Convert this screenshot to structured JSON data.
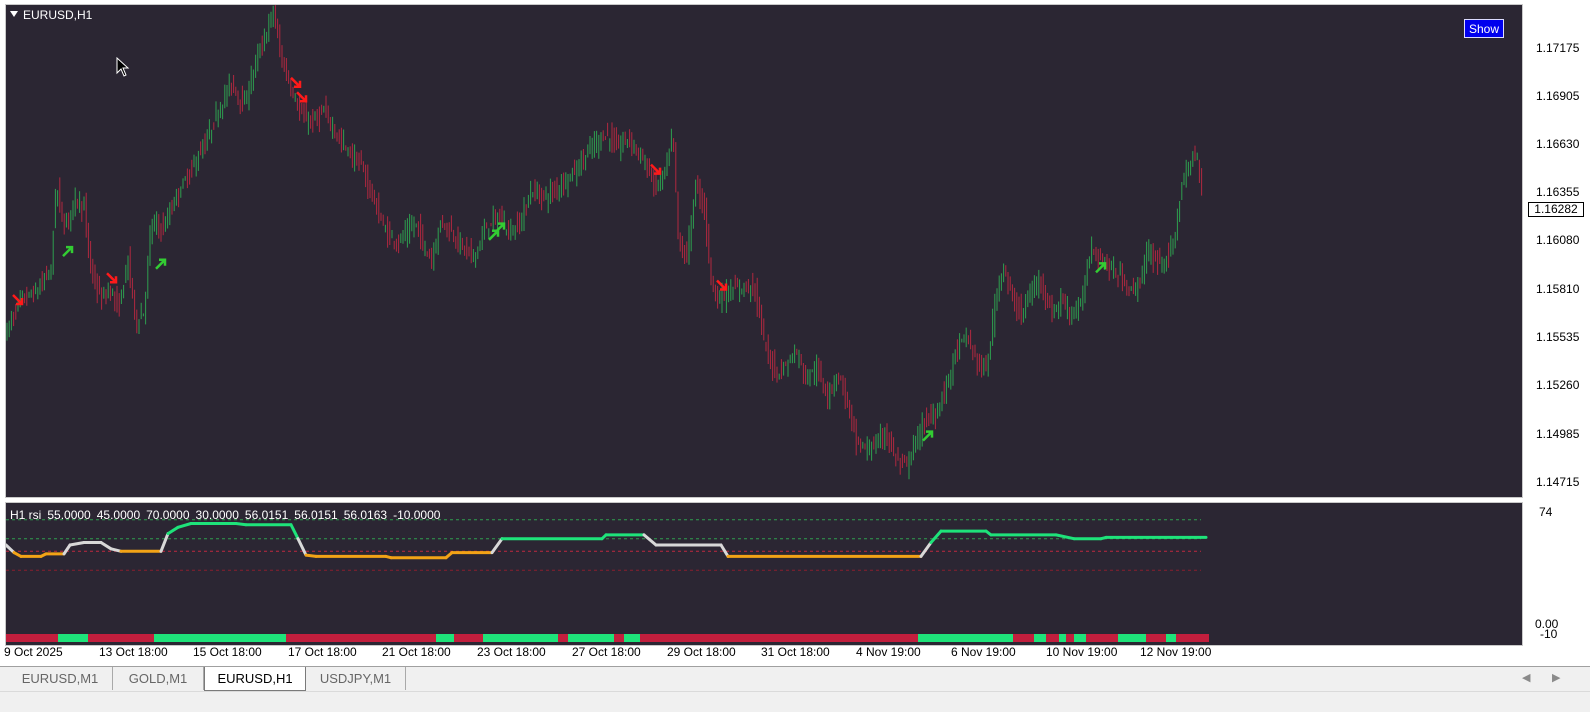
{
  "window": {
    "chart_title": "EURUSD,H1",
    "show_button_label": "Show"
  },
  "colors": {
    "background": "#2b2633",
    "bull_candle": "#2e9e4f",
    "bear_candle": "#b0283f",
    "buy_arrow": "#33cc33",
    "sell_arrow": "#ff1a1a",
    "rsi_high": "#1ee37a",
    "rsi_low": "#f3a316",
    "rsi_neutral": "#d8d8d8"
  },
  "price_axis": {
    "labels": [
      "1.17175",
      "1.16905",
      "1.16630",
      "1.16355",
      "1.16080",
      "1.15810",
      "1.15535",
      "1.15260",
      "1.14985",
      "1.14715"
    ],
    "current_price": "1.16282"
  },
  "rsi_panel": {
    "info": [
      "H1 rsi",
      "55.0000",
      "45.0000",
      "70.0000",
      "30.0000",
      "56.0151",
      "56.0151",
      "56.0163",
      "-10.0000"
    ],
    "axis_labels": [
      "74",
      "0.00",
      "-10"
    ]
  },
  "time_axis": {
    "labels": [
      "9 Oct 2025",
      "13 Oct 18:00",
      "15 Oct 18:00",
      "17 Oct 18:00",
      "21 Oct 18:00",
      "23 Oct 18:00",
      "27 Oct 18:00",
      "29 Oct 18:00",
      "31 Oct 18:00",
      "4 Nov 19:00",
      "6 Nov 19:00",
      "10 Nov 19:00",
      "12 Nov 19:00"
    ]
  },
  "tabs": [
    {
      "label": "EURUSD,M1",
      "active": false
    },
    {
      "label": "GOLD,M1",
      "active": false
    },
    {
      "label": "EURUSD,H1",
      "active": true
    },
    {
      "label": "USDJPY,M1",
      "active": false
    }
  ],
  "chart_data": {
    "type": "candlestick",
    "symbol": "EURUSD",
    "timeframe": "H1",
    "ylim": [
      1.1458,
      1.1731
    ],
    "price_path": [
      [
        0,
        1.155
      ],
      [
        14,
        1.1568
      ],
      [
        30,
        1.1572
      ],
      [
        45,
        1.1585
      ],
      [
        50,
        1.1632
      ],
      [
        58,
        1.1608
      ],
      [
        70,
        1.1625
      ],
      [
        78,
        1.1618
      ],
      [
        85,
        1.1584
      ],
      [
        95,
        1.1568
      ],
      [
        105,
        1.1574
      ],
      [
        112,
        1.1562
      ],
      [
        122,
        1.159
      ],
      [
        130,
        1.1555
      ],
      [
        138,
        1.1562
      ],
      [
        145,
        1.161
      ],
      [
        158,
        1.1608
      ],
      [
        170,
        1.1625
      ],
      [
        185,
        1.164
      ],
      [
        200,
        1.1655
      ],
      [
        212,
        1.1672
      ],
      [
        225,
        1.1688
      ],
      [
        238,
        1.1675
      ],
      [
        250,
        1.17
      ],
      [
        260,
        1.1715
      ],
      [
        267,
        1.1728
      ],
      [
        275,
        1.1702
      ],
      [
        285,
        1.1685
      ],
      [
        295,
        1.167
      ],
      [
        305,
        1.1666
      ],
      [
        318,
        1.1672
      ],
      [
        330,
        1.166
      ],
      [
        342,
        1.165
      ],
      [
        355,
        1.1642
      ],
      [
        365,
        1.1628
      ],
      [
        372,
        1.1616
      ],
      [
        380,
        1.1605
      ],
      [
        392,
        1.16
      ],
      [
        402,
        1.1606
      ],
      [
        410,
        1.161
      ],
      [
        418,
        1.1598
      ],
      [
        425,
        1.159
      ],
      [
        435,
        1.1612
      ],
      [
        445,
        1.1606
      ],
      [
        455,
        1.1598
      ],
      [
        468,
        1.1592
      ],
      [
        480,
        1.1608
      ],
      [
        492,
        1.1614
      ],
      [
        505,
        1.1605
      ],
      [
        515,
        1.1612
      ],
      [
        525,
        1.1628
      ],
      [
        540,
        1.1625
      ],
      [
        555,
        1.1632
      ],
      [
        570,
        1.164
      ],
      [
        585,
        1.1652
      ],
      [
        600,
        1.166
      ],
      [
        612,
        1.1652
      ],
      [
        622,
        1.1658
      ],
      [
        632,
        1.165
      ],
      [
        642,
        1.164
      ],
      [
        650,
        1.163
      ],
      [
        660,
        1.164
      ],
      [
        667,
        1.166
      ],
      [
        672,
        1.1602
      ],
      [
        680,
        1.159
      ],
      [
        690,
        1.1632
      ],
      [
        698,
        1.162
      ],
      [
        705,
        1.158
      ],
      [
        712,
        1.1568
      ],
      [
        722,
        1.1572
      ],
      [
        735,
        1.1575
      ],
      [
        748,
        1.1576
      ],
      [
        760,
        1.154
      ],
      [
        770,
        1.1528
      ],
      [
        780,
        1.1532
      ],
      [
        790,
        1.154
      ],
      [
        800,
        1.1525
      ],
      [
        810,
        1.153
      ],
      [
        822,
        1.1515
      ],
      [
        832,
        1.1528
      ],
      [
        842,
        1.151
      ],
      [
        850,
        1.149
      ],
      [
        860,
        1.1485
      ],
      [
        870,
        1.1488
      ],
      [
        880,
        1.1495
      ],
      [
        890,
        1.148
      ],
      [
        900,
        1.1476
      ],
      [
        910,
        1.149
      ],
      [
        920,
        1.1502
      ],
      [
        930,
        1.1505
      ],
      [
        940,
        1.152
      ],
      [
        950,
        1.154
      ],
      [
        960,
        1.1548
      ],
      [
        970,
        1.1535
      ],
      [
        980,
        1.1528
      ],
      [
        990,
        1.157
      ],
      [
        997,
        1.1588
      ],
      [
        1005,
        1.157
      ],
      [
        1015,
        1.156
      ],
      [
        1025,
        1.1572
      ],
      [
        1035,
        1.158
      ],
      [
        1045,
        1.156
      ],
      [
        1055,
        1.1568
      ],
      [
        1065,
        1.156
      ],
      [
        1075,
        1.1565
      ],
      [
        1085,
        1.1598
      ],
      [
        1095,
        1.159
      ],
      [
        1105,
        1.1585
      ],
      [
        1115,
        1.158
      ],
      [
        1125,
        1.1572
      ],
      [
        1135,
        1.158
      ],
      [
        1142,
        1.1595
      ],
      [
        1150,
        1.159
      ],
      [
        1160,
        1.159
      ],
      [
        1168,
        1.16
      ],
      [
        1175,
        1.163
      ],
      [
        1182,
        1.164
      ],
      [
        1190,
        1.165
      ],
      [
        1196,
        1.163
      ]
    ],
    "signals": [
      {
        "type": "sell",
        "bar": 12,
        "price": 1.1568
      },
      {
        "type": "buy",
        "bar": 62,
        "price": 1.1595
      },
      {
        "type": "sell",
        "bar": 106,
        "price": 1.158
      },
      {
        "type": "buy",
        "bar": 155,
        "price": 1.1588
      },
      {
        "type": "sell",
        "bar": 290,
        "price": 1.1688
      },
      {
        "type": "sell",
        "bar": 296,
        "price": 1.168
      },
      {
        "type": "buy",
        "bar": 488,
        "price": 1.1604
      },
      {
        "type": "buy",
        "bar": 494,
        "price": 1.1608
      },
      {
        "type": "sell",
        "bar": 650,
        "price": 1.164
      },
      {
        "type": "sell",
        "bar": 716,
        "price": 1.1576
      },
      {
        "type": "buy",
        "bar": 922,
        "price": 1.1493
      },
      {
        "type": "buy",
        "bar": 1095,
        "price": 1.1586
      }
    ],
    "rsi": {
      "ylim": [
        -10,
        80
      ],
      "levels": {
        "upper_outer": 70,
        "upper": 55,
        "lower": 45,
        "lower_outer": 30
      },
      "path": [
        [
          0,
          50
        ],
        [
          8,
          44
        ],
        [
          15,
          41
        ],
        [
          35,
          41
        ],
        [
          40,
          43
        ],
        [
          58,
          43
        ],
        [
          64,
          50
        ],
        [
          78,
          52
        ],
        [
          95,
          52
        ],
        [
          105,
          47
        ],
        [
          115,
          45
        ],
        [
          155,
          45
        ],
        [
          162,
          59
        ],
        [
          172,
          64
        ],
        [
          185,
          67
        ],
        [
          230,
          67
        ],
        [
          240,
          66
        ],
        [
          285,
          66
        ],
        [
          292,
          55
        ],
        [
          300,
          42
        ],
        [
          310,
          41
        ],
        [
          380,
          41
        ],
        [
          385,
          40
        ],
        [
          440,
          40
        ],
        [
          446,
          44
        ],
        [
          486,
          44
        ],
        [
          496,
          55
        ],
        [
          596,
          55
        ],
        [
          600,
          58
        ],
        [
          638,
          58
        ],
        [
          650,
          50
        ],
        [
          715,
          50
        ],
        [
          722,
          41
        ],
        [
          915,
          41
        ],
        [
          925,
          52
        ],
        [
          935,
          61
        ],
        [
          980,
          61
        ],
        [
          985,
          58
        ],
        [
          1050,
          58
        ],
        [
          1068,
          55
        ],
        [
          1095,
          55
        ],
        [
          1100,
          56
        ],
        [
          1200,
          56
        ]
      ],
      "state_bar": [
        [
          0,
          52,
          "low"
        ],
        [
          52,
          82,
          "high"
        ],
        [
          82,
          148,
          "low"
        ],
        [
          148,
          280,
          "high"
        ],
        [
          280,
          430,
          "low"
        ],
        [
          430,
          448,
          "high"
        ],
        [
          448,
          477,
          "low"
        ],
        [
          477,
          552,
          "high"
        ],
        [
          552,
          562,
          "low"
        ],
        [
          562,
          608,
          "high"
        ],
        [
          608,
          618,
          "low"
        ],
        [
          618,
          634,
          "high"
        ],
        [
          634,
          912,
          "low"
        ],
        [
          912,
          1007,
          "high"
        ],
        [
          1007,
          1028,
          "low"
        ],
        [
          1028,
          1040,
          "high"
        ],
        [
          1040,
          1053,
          "low"
        ],
        [
          1053,
          1060,
          "high"
        ],
        [
          1060,
          1068,
          "low"
        ],
        [
          1068,
          1080,
          "high"
        ],
        [
          1080,
          1112,
          "low"
        ],
        [
          1112,
          1140,
          "high"
        ],
        [
          1140,
          1160,
          "low"
        ],
        [
          1160,
          1170,
          "high"
        ],
        [
          1170,
          1203,
          "low"
        ]
      ]
    }
  }
}
